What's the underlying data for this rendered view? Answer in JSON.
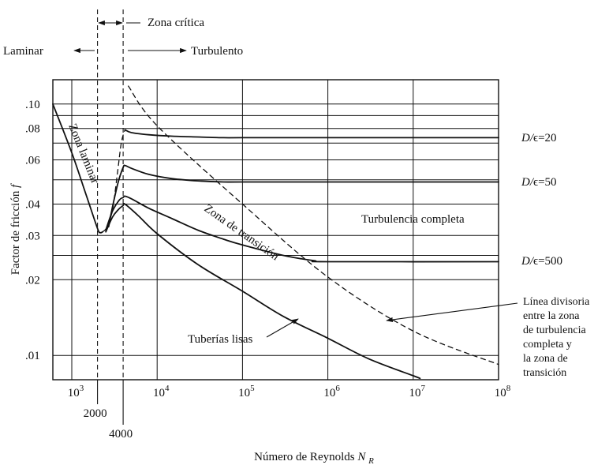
{
  "chart_data": {
    "type": "line",
    "title": "",
    "xlabel": "Número de Reynolds",
    "xlabel_symbol": "N",
    "xlabel_subscript": "R",
    "ylabel": "Factor de fricción",
    "ylabel_symbol": "f",
    "x_scale": "log",
    "y_scale": "log",
    "xlim": [
      600,
      100000000
    ],
    "ylim": [
      0.008,
      0.125
    ],
    "grid": true,
    "x_ticks": [
      {
        "value": 1000,
        "base": "10",
        "exp": "3"
      },
      {
        "value": 10000,
        "base": "10",
        "exp": "4"
      },
      {
        "value": 100000,
        "base": "10",
        "exp": "5"
      },
      {
        "value": 1000000,
        "base": "10",
        "exp": "6"
      },
      {
        "value": 10000000,
        "base": "10",
        "exp": "7"
      },
      {
        "value": 100000000,
        "base": "10",
        "exp": "8"
      }
    ],
    "x_extra_ticks": [
      {
        "value": 2000,
        "label": "2000"
      },
      {
        "value": 4000,
        "label": "4000"
      }
    ],
    "y_ticks": [
      {
        "value": 0.1,
        "label": ".10"
      },
      {
        "value": 0.08,
        "label": ".08"
      },
      {
        "value": 0.06,
        "label": ".06"
      },
      {
        "value": 0.04,
        "label": ".04"
      },
      {
        "value": 0.03,
        "label": ".03"
      },
      {
        "value": 0.02,
        "label": ".02"
      },
      {
        "value": 0.01,
        "label": ".01"
      }
    ],
    "y_extra_gridlines": [
      0.09,
      0.07,
      0.05,
      0.025
    ],
    "series": [
      {
        "key": "laminar",
        "style": "solid",
        "x": [
          600,
          1000,
          1500,
          2000,
          2150,
          2300
        ],
        "y": [
          0.1,
          0.064,
          0.0427,
          0.032,
          0.0308,
          0.031
        ]
      },
      {
        "key": "critical",
        "style": "dashed",
        "x": [
          2300,
          2600,
          3000,
          3400,
          3800,
          4200
        ],
        "y": [
          0.031,
          0.0325,
          0.038,
          0.052,
          0.07,
          0.079
        ]
      },
      {
        "key": "rough20",
        "style": "solid",
        "x": [
          4200,
          5000,
          8000,
          15000,
          30000,
          60000,
          100000,
          1000000,
          100000000
        ],
        "y": [
          0.079,
          0.077,
          0.0755,
          0.0745,
          0.074,
          0.0735,
          0.0735,
          0.0735,
          0.0735
        ]
      },
      {
        "key": "rough50",
        "style": "solid",
        "x": [
          2700,
          3000,
          3500,
          4000,
          4200,
          5000,
          8000,
          15000,
          30000,
          60000,
          100000,
          1000000,
          100000000
        ],
        "y": [
          0.0325,
          0.039,
          0.049,
          0.056,
          0.057,
          0.0555,
          0.0525,
          0.0505,
          0.0495,
          0.049,
          0.049,
          0.049,
          0.049
        ]
      },
      {
        "key": "rough500",
        "style": "solid",
        "x": [
          2500,
          3000,
          3600,
          4000,
          4200,
          5000,
          8000,
          15000,
          30000,
          60000,
          100000,
          300000,
          700000,
          1000000,
          100000000
        ],
        "y": [
          0.0315,
          0.0375,
          0.0415,
          0.0425,
          0.043,
          0.042,
          0.0385,
          0.035,
          0.0315,
          0.029,
          0.0275,
          0.025,
          0.0238,
          0.0236,
          0.0236
        ]
      },
      {
        "key": "smooth",
        "style": "solid",
        "x": [
          2500,
          3000,
          3500,
          4000,
          4200,
          6000,
          10000,
          30000,
          100000,
          300000,
          1000000,
          3000000,
          10000000,
          12000000
        ],
        "y": [
          0.031,
          0.0355,
          0.038,
          0.0395,
          0.04,
          0.036,
          0.0305,
          0.023,
          0.018,
          0.0143,
          0.0117,
          0.0097,
          0.0083,
          0.0081
        ]
      },
      {
        "key": "divider",
        "style": "dashed",
        "x": [
          4600,
          10000,
          100000,
          1000000,
          10000000,
          100000000
        ],
        "y": [
          0.118,
          0.082,
          0.04,
          0.0205,
          0.0125,
          0.0092
        ]
      }
    ],
    "annotations": {
      "laminar_zone": "Zona laminar",
      "transition_zone": "Zona de transición",
      "full_turbulence": "Turbulencia completa",
      "smooth_pipes": "Tuberías lisas",
      "divider_lines": [
        "Línea divisoria",
        "entre la zona",
        "de turbulencia",
        "completa y",
        "la zona de",
        "transición"
      ],
      "top_laminar": "Laminar",
      "top_critical": "Zona crítica",
      "top_turbulent": "Turbulento",
      "roughness": [
        {
          "prefix": "D/",
          "symbol": "ϵ",
          "suffix": "=20",
          "value": 20
        },
        {
          "prefix": "D/",
          "symbol": "ϵ",
          "suffix": "=50",
          "value": 50
        },
        {
          "prefix": "D/",
          "symbol": "ϵ",
          "suffix": "=500",
          "value": 500
        }
      ]
    }
  }
}
